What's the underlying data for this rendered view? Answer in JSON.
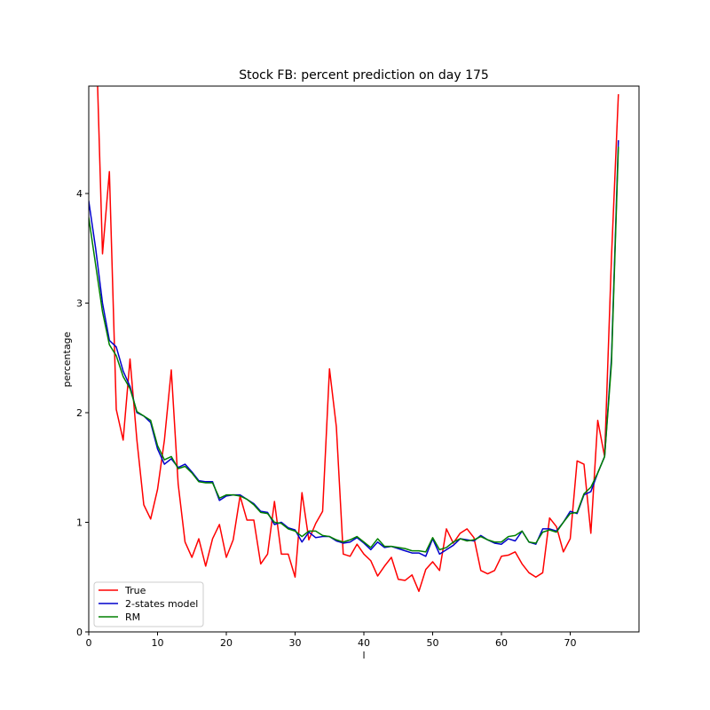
{
  "chart_data": {
    "type": "line",
    "title": "Stock FB: percent prediction on day 175",
    "xlabel": "l",
    "ylabel": "percentage",
    "xlim": [
      0,
      80
    ],
    "ylim": [
      0,
      4.98
    ],
    "xticks": [
      0,
      10,
      20,
      30,
      40,
      50,
      60,
      70
    ],
    "yticks": [
      0,
      1,
      2,
      3,
      4
    ],
    "grid": false,
    "legend_position": "lower-left",
    "series": [
      {
        "name": "True",
        "color": "#ff0000",
        "values": [
          null,
          5.6,
          3.45,
          4.2,
          2.03,
          1.75,
          2.49,
          1.75,
          1.16,
          1.03,
          1.3,
          1.75,
          2.39,
          1.35,
          0.82,
          0.68,
          0.85,
          0.6,
          0.85,
          0.98,
          0.68,
          0.84,
          1.24,
          1.02,
          1.02,
          0.62,
          0.71,
          1.19,
          0.71,
          0.71,
          0.5,
          1.27,
          0.84,
          0.99,
          1.1,
          2.4,
          1.87,
          0.71,
          0.69,
          0.8,
          0.71,
          0.65,
          0.51,
          0.6,
          0.68,
          0.48,
          0.47,
          0.52,
          0.37,
          0.57,
          0.64,
          0.56,
          0.94,
          0.81,
          0.9,
          0.94,
          0.86,
          0.56,
          0.53,
          0.56,
          0.69,
          0.7,
          0.73,
          0.62,
          0.54,
          0.5,
          0.54,
          1.04,
          0.96,
          0.73,
          0.85,
          1.56,
          1.53,
          0.9,
          1.93,
          1.6,
          3.42,
          4.9
        ]
      },
      {
        "name": "2-states model",
        "color": "#0000cc",
        "values": [
          3.93,
          3.5,
          3.0,
          2.66,
          2.6,
          2.38,
          2.24,
          2.0,
          1.97,
          1.91,
          1.67,
          1.53,
          1.58,
          1.5,
          1.53,
          1.46,
          1.38,
          1.37,
          1.37,
          1.2,
          1.24,
          1.25,
          1.25,
          1.21,
          1.17,
          1.1,
          1.09,
          0.98,
          1.0,
          0.95,
          0.93,
          0.82,
          0.91,
          0.86,
          0.87,
          0.87,
          0.83,
          0.81,
          0.82,
          0.86,
          0.81,
          0.75,
          0.82,
          0.77,
          0.78,
          0.76,
          0.74,
          0.72,
          0.72,
          0.69,
          0.85,
          0.71,
          0.75,
          0.79,
          0.85,
          0.84,
          0.83,
          0.88,
          0.84,
          0.81,
          0.8,
          0.85,
          0.83,
          0.92,
          0.82,
          0.8,
          0.94,
          0.94,
          0.92,
          1.0,
          1.1,
          1.08,
          1.25,
          1.28,
          1.45,
          1.6,
          2.5,
          4.48
        ]
      },
      {
        "name": "RM",
        "color": "#008000",
        "values": [
          3.78,
          3.35,
          2.92,
          2.62,
          2.52,
          2.33,
          2.22,
          2.01,
          1.97,
          1.93,
          1.7,
          1.57,
          1.6,
          1.49,
          1.51,
          1.45,
          1.37,
          1.36,
          1.36,
          1.22,
          1.25,
          1.25,
          1.24,
          1.21,
          1.16,
          1.09,
          1.08,
          1.0,
          0.99,
          0.94,
          0.92,
          0.87,
          0.92,
          0.92,
          0.88,
          0.87,
          0.84,
          0.82,
          0.84,
          0.87,
          0.82,
          0.77,
          0.85,
          0.78,
          0.78,
          0.77,
          0.76,
          0.74,
          0.74,
          0.73,
          0.86,
          0.75,
          0.77,
          0.82,
          0.85,
          0.83,
          0.84,
          0.87,
          0.84,
          0.82,
          0.82,
          0.87,
          0.88,
          0.92,
          0.82,
          0.81,
          0.91,
          0.93,
          0.91,
          1.0,
          1.08,
          1.09,
          1.26,
          1.32,
          1.45,
          1.6,
          2.45,
          4.42
        ]
      }
    ]
  }
}
